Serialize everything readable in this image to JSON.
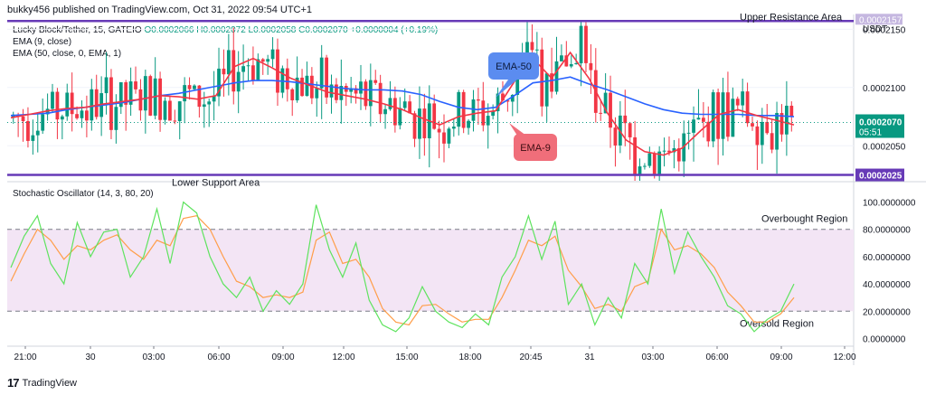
{
  "header": {
    "publisher": "bukky456 published on TradingView.com, Oct 31, 2022 09:54 UTC+1",
    "legend_title": "Lucky Block/Tether, 15, GATEIO",
    "legend_ohlc": "O0.0002066  H0.0002072  L0.0002058  C0.0002070  +0.0000004 (+0.19%)",
    "ema9_legend": "EMA (9, close)",
    "ema50_legend": "EMA (50, close, 0, EMA, 1)",
    "stoch_legend": "Stochastic Oscillator (14, 3, 80, 20)"
  },
  "footer": {
    "brand": "TradingView"
  },
  "colors": {
    "up": "#089981",
    "down": "#f23645",
    "ema9": "#f23645",
    "ema50": "#2962ff",
    "level": "#673ab7",
    "stoch_k": "#5ee35e",
    "stoch_d": "#ff9e4a",
    "band": "#f3e5f5"
  },
  "chart_data": [
    {
      "type": "candlestick",
      "series_names": [
        "EMA-9",
        "EMA-50"
      ],
      "currency": "USDT",
      "price_axis_ticks": [
        "0.0002150",
        "0.0002100",
        "0.0002050"
      ],
      "price_axis_range": [
        0.000202,
        0.0002158
      ],
      "current_price": "0.0002070",
      "countdown": "05:51",
      "support_price": "0.0002025",
      "resistance_price": "0.0002157",
      "annotations": {
        "upper": "Upper Resistance Area",
        "lower": "Lower Support Area",
        "ema50_callout": "EMA-50",
        "ema9_callout": "EMA-9"
      },
      "x_axis_ticks": [
        "21:00",
        "30",
        "03:00",
        "06:00",
        "09:00",
        "12:00",
        "15:00",
        "18:00",
        "20:45",
        "31",
        "03:00",
        "06:00",
        "09:00",
        "12:00"
      ],
      "ema9": [
        0.0002074,
        0.0002077,
        0.000208,
        0.0002082,
        0.0002083,
        0.0002086,
        0.0002088,
        0.000209,
        0.0002093,
        0.0002092,
        0.000209,
        0.0002093,
        0.0002118,
        0.0002125,
        0.0002117,
        0.0002108,
        0.0002102,
        0.0002096,
        0.0002093,
        0.000209,
        0.0002086,
        0.0002081,
        0.0002074,
        0.0002068,
        0.0002075,
        0.0002078,
        0.000208,
        0.0002105,
        0.0002125,
        0.0002108,
        0.000213,
        0.0002108,
        0.0002078,
        0.0002055,
        0.0002045,
        0.0002042,
        0.0002048,
        0.0002063,
        0.0002077,
        0.0002081,
        0.0002076,
        0.0002072,
        0.0002068
      ],
      "ema50": [
        0.0002076,
        0.0002077,
        0.0002078,
        0.0002081,
        0.0002083,
        0.0002085,
        0.0002087,
        0.000209,
        0.0002093,
        0.0002095,
        0.0002098,
        0.0002101,
        0.0002104,
        0.0002106,
        0.0002106,
        0.0002105,
        0.0002103,
        0.0002101,
        0.0002099,
        0.0002098,
        0.0002098,
        0.0002097,
        0.0002094,
        0.0002088,
        0.0002083,
        0.0002081,
        0.0002083,
        0.0002093,
        0.0002104,
        0.0002106,
        0.0002109,
        0.0002103,
        0.0002098,
        0.0002092,
        0.0002086,
        0.0002081,
        0.0002078,
        0.0002077,
        0.0002077,
        0.0002077,
        0.0002076,
        0.0002076,
        0.0002075
      ]
    },
    {
      "type": "line",
      "name": "Stochastic Oscillator",
      "y_axis_ticks": [
        "100.0000000",
        "80.0000000",
        "60.0000000",
        "40.0000000",
        "20.0000000",
        "0.0000000"
      ],
      "ylim": [
        -5,
        107
      ],
      "bands": [
        80,
        20
      ],
      "annotations": {
        "overbought": "Overbought Region",
        "oversold": "Oversold Region"
      },
      "k": [
        52,
        75,
        90,
        55,
        40,
        85,
        60,
        78,
        80,
        45,
        60,
        95,
        55,
        100,
        92,
        60,
        40,
        30,
        45,
        20,
        35,
        25,
        40,
        98,
        65,
        45,
        70,
        28,
        10,
        5,
        15,
        38,
        20,
        12,
        8,
        18,
        10,
        45,
        60,
        90,
        58,
        86,
        25,
        40,
        10,
        30,
        15,
        55,
        40,
        95,
        48,
        78,
        60,
        45,
        24,
        18,
        5,
        14,
        20,
        40
      ],
      "d": [
        42,
        62,
        80,
        72,
        58,
        68,
        65,
        72,
        76,
        65,
        58,
        72,
        68,
        88,
        90,
        80,
        60,
        42,
        38,
        30,
        32,
        30,
        34,
        72,
        78,
        55,
        58,
        45,
        22,
        12,
        10,
        24,
        25,
        18,
        12,
        14,
        14,
        30,
        50,
        72,
        68,
        75,
        50,
        38,
        22,
        25,
        20,
        38,
        42,
        80,
        65,
        68,
        62,
        52,
        34,
        24,
        12,
        12,
        18,
        30
      ]
    }
  ]
}
